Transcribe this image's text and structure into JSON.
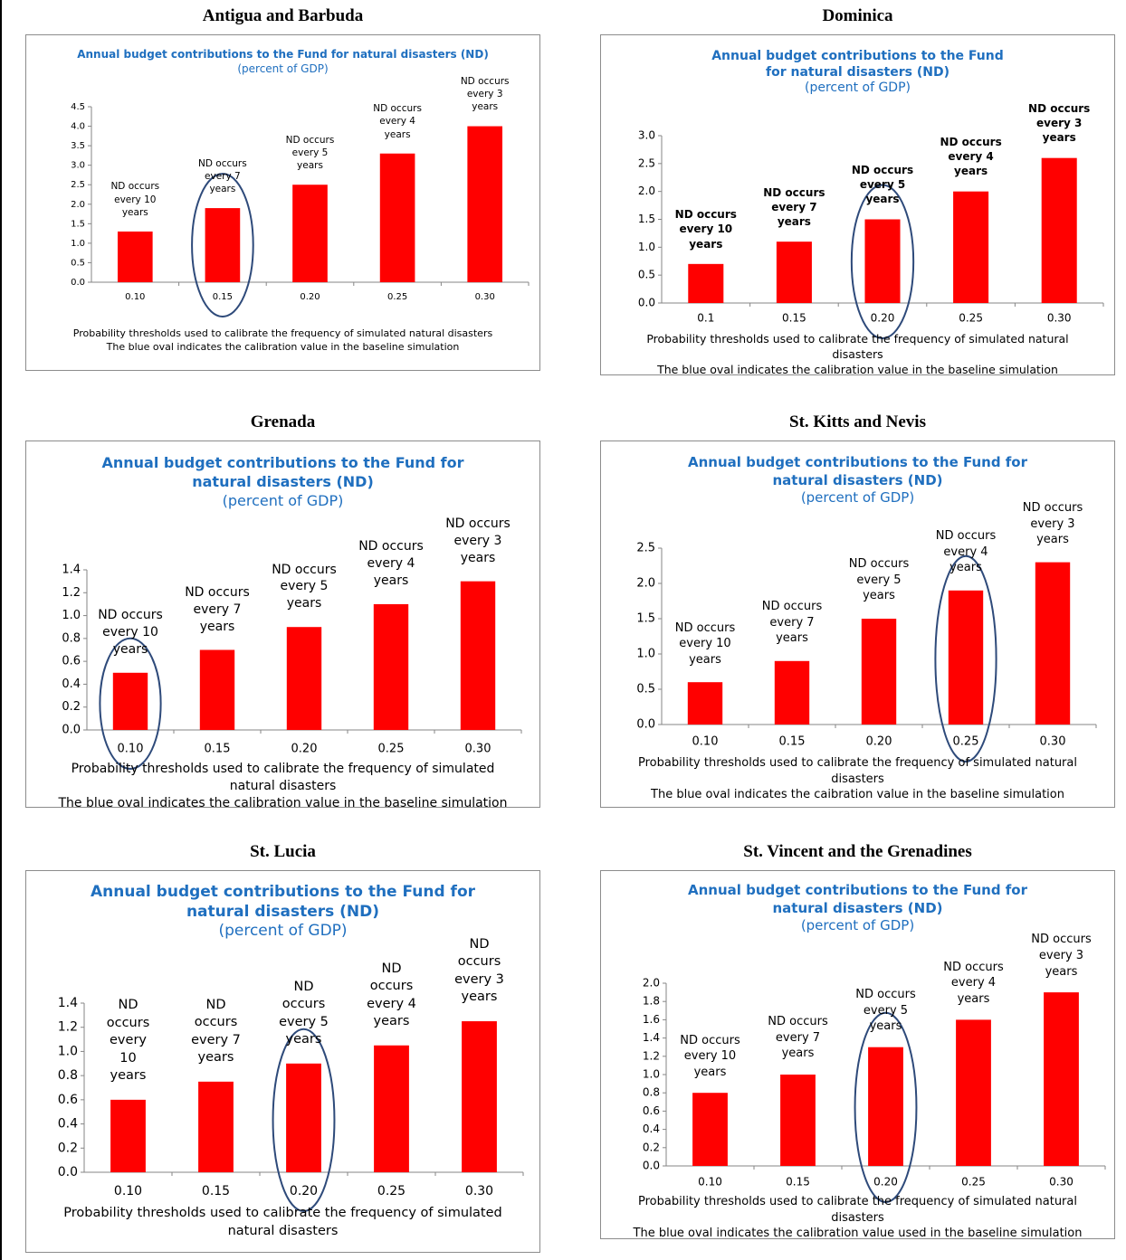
{
  "chart_data": [
    {
      "type": "bar",
      "country": "Antigua and Barbuda",
      "title": "Annual budget contributions to the Fund for natural disasters (ND)",
      "subtitle": "(percent of GDP)",
      "categories": [
        "0.10",
        "0.15",
        "0.20",
        "0.25",
        "0.30"
      ],
      "values": [
        1.3,
        1.9,
        2.5,
        3.3,
        4.0
      ],
      "annotations": [
        "ND occurs every 10 years",
        "ND occurs every 7 years",
        "ND occurs every 5 years",
        "ND occurs every 4 years",
        "ND occurs every 3 years"
      ],
      "ylim": [
        0,
        4.5
      ],
      "yticks": [
        {
          "value": 0,
          "label": "0.0"
        },
        0.5,
        {
          "value": 1,
          "label": "1.0"
        },
        1.5,
        {
          "value": 2,
          "label": "2.0"
        },
        2.5,
        {
          "value": 3,
          "label": "3.0"
        },
        3.5,
        {
          "value": 4,
          "label": "4.0"
        },
        4.5
      ],
      "baseline_index": 1,
      "color": "#ff0000",
      "oval_color": "#2e4a7a",
      "notes": [
        "Probability thresholds used to calibrate the frequency of  simulated natural disasters",
        "The blue oval indicates the calibration value in the baseline simulation"
      ]
    },
    {
      "type": "bar",
      "country": "Dominica",
      "title": "Annual budget contributions to the Fund for natural disasters (ND)",
      "subtitle": "(percent of GDP)",
      "categories": [
        "0.1",
        "0.15",
        "0.20",
        "0.25",
        "0.30"
      ],
      "values": [
        0.7,
        1.1,
        1.5,
        2.0,
        2.6
      ],
      "annotations": [
        "ND occurs every 10 years",
        "ND occurs every 7 years",
        "ND occurs every 5 years",
        "ND occurs every 4 years",
        "ND occurs every 3 years"
      ],
      "ylim": [
        0,
        3
      ],
      "yticks": [
        {
          "value": 0,
          "label": "0.0"
        },
        0.5,
        {
          "value": 1,
          "label": "1.0"
        },
        1.5,
        {
          "value": 2,
          "label": "2.0"
        },
        2.5,
        {
          "value": 3,
          "label": "3.0"
        }
      ],
      "baseline_index": 2,
      "color": "#ff0000",
      "oval_color": "#2e4a7a",
      "notes": [
        "Probability thresholds used to calibrate the frequency of  simulated natural disasters",
        "The blue oval indicates the calibration value in the baseline simulation"
      ]
    },
    {
      "type": "bar",
      "country": "Grenada",
      "title": "Annual budget contributions to the Fund for natural disasters (ND)",
      "subtitle": "(percent of GDP)",
      "categories": [
        "0.10",
        "0.15",
        "0.20",
        "0.25",
        "0.30"
      ],
      "values": [
        0.5,
        0.7,
        0.9,
        1.1,
        1.3
      ],
      "annotations": [
        "ND occurs every 10 years",
        "ND occurs every 7 years",
        "ND occurs every 5 years",
        "ND occurs every 4 years",
        "ND occurs every 3 years"
      ],
      "ylim": [
        0,
        1.4
      ],
      "yticks": [
        {
          "value": 0,
          "label": "0.0"
        },
        0.2,
        0.4,
        0.6,
        0.8,
        {
          "value": 1,
          "label": "1.0"
        },
        1.2,
        1.4
      ],
      "baseline_index": 0,
      "color": "#ff0000",
      "oval_color": "#2e4a7a",
      "notes": [
        "Probability thresholds used to calibrate the frequency of  simulated natural disasters",
        "The blue oval indicates the calibration value in the baseline simulation"
      ]
    },
    {
      "type": "bar",
      "country": "St. Kitts and Nevis",
      "title": "Annual budget contributions to the Fund for natural disasters (ND)",
      "subtitle": "(percent of GDP)",
      "categories": [
        "0.10",
        "0.15",
        "0.20",
        "0.25",
        "0.30"
      ],
      "values": [
        0.6,
        0.9,
        1.5,
        1.9,
        2.3
      ],
      "annotations": [
        "ND occurs every 10 years",
        "ND occurs every 7 years",
        "ND occurs every 5 years",
        "ND occurs every 4 years",
        "ND occurs every 3 years"
      ],
      "ylim": [
        0,
        2.5
      ],
      "yticks": [
        {
          "value": 0,
          "label": "0.0"
        },
        0.5,
        {
          "value": 1,
          "label": "1.0"
        },
        1.5,
        {
          "value": 2,
          "label": "2.0"
        },
        2.5
      ],
      "baseline_index": 3,
      "color": "#ff0000",
      "oval_color": "#2e4a7a",
      "notes": [
        "Probability thresholds used to calibrate the frequency of  simulated natural disasters",
        "The blue oval indicates the caibration value in the baseline simulation"
      ]
    },
    {
      "type": "bar",
      "country": "St. Lucia",
      "title": "Annual budget contributions to the Fund for natural disasters (ND)",
      "subtitle": "(percent of GDP)",
      "categories": [
        "0.10",
        "0.15",
        "0.20",
        "0.25",
        "0.30"
      ],
      "values": [
        0.6,
        0.75,
        0.9,
        1.05,
        1.25
      ],
      "annotations": [
        "ND occurs every 10 years",
        "ND occurs every 7 years",
        "ND occurs every 5 years",
        "ND occurs every 4 years",
        "ND occurs every 3 years"
      ],
      "ylim": [
        0,
        1.4
      ],
      "yticks": [
        {
          "value": 0,
          "label": "0.0"
        },
        0.2,
        0.4,
        0.6,
        0.8,
        {
          "value": 1,
          "label": "1.0"
        },
        1.2,
        1.4
      ],
      "baseline_index": 2,
      "color": "#ff0000",
      "oval_color": "#2e4a7a",
      "notes": [
        "Probability thresholds used to calibrate the frequency of  simulated natural disasters"
      ]
    },
    {
      "type": "bar",
      "country": "St. Vincent and the Grenadines",
      "title": "Annual budget contributions to the Fund for natural disasters (ND)",
      "subtitle": "(percent of GDP)",
      "categories": [
        "0.10",
        "0.15",
        "0.20",
        "0.25",
        "0.30"
      ],
      "values": [
        0.8,
        1.0,
        1.3,
        1.6,
        1.9
      ],
      "annotations": [
        "ND occurs every 10 years",
        "ND occurs every 7 years",
        "ND occurs every 5 years",
        "ND occurs every 4 years",
        "ND occurs every 3 years"
      ],
      "ylim": [
        0,
        2
      ],
      "yticks": [
        {
          "value": 0,
          "label": "0.0"
        },
        0.2,
        0.4,
        0.6,
        0.8,
        {
          "value": 1,
          "label": "1.0"
        },
        1.2,
        1.4,
        1.6,
        1.8,
        {
          "value": 2,
          "label": "2.0"
        }
      ],
      "baseline_index": 2,
      "color": "#ff0000",
      "oval_color": "#2e4a7a",
      "notes": [
        "Probability thresholds used to calibrate the frequency of  simulated natural disasters",
        "The blue oval indicates the calibration value used in the baseline simulation"
      ]
    }
  ]
}
